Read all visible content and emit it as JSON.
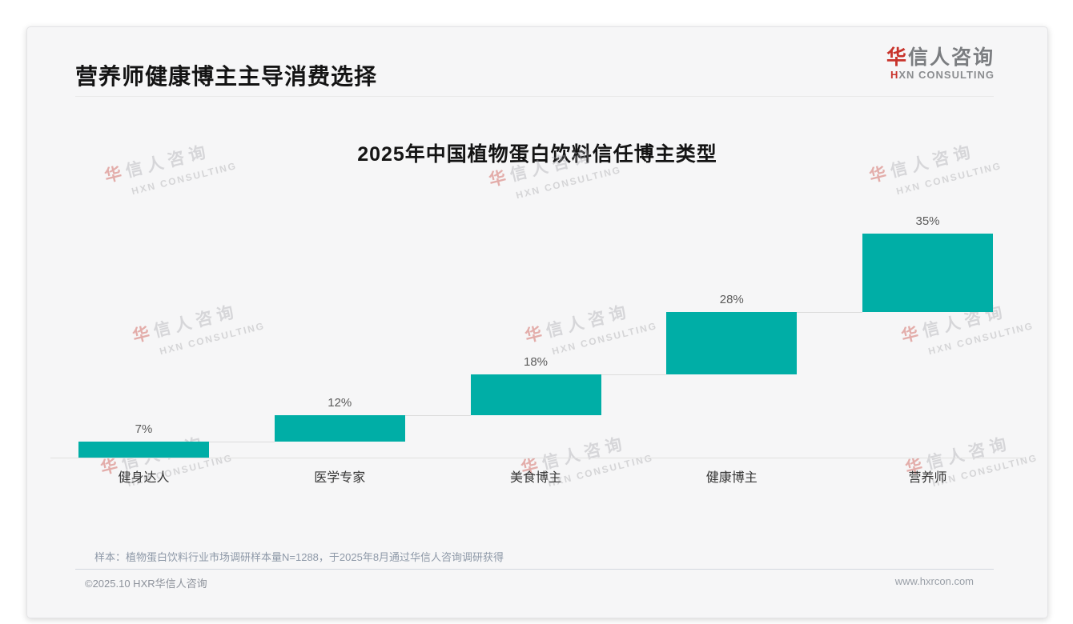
{
  "page": {
    "header_title": "营养师健康博主主导消费选择",
    "logo": {
      "cn_first": "华",
      "cn_rest": "信人咨询",
      "en_first": "H",
      "en_rest": "XN CONSULTING"
    },
    "watermark": {
      "cn_first": "华",
      "cn_rest": "信人咨询",
      "en": "HXN CONSULTING"
    },
    "sample_note": "样本：植物蛋白饮料行业市场调研样本量N=1288，于2025年8月通过华信人咨询调研获得",
    "footer_left": "©2025.10 HXR华信人咨询",
    "footer_right": "www.hxrcon.com"
  },
  "colors": {
    "teal": "#00AEA6",
    "accent_red": "#c8332b",
    "title_black": "#141414"
  },
  "chart_data": {
    "type": "bar",
    "variant": "waterfall-steps",
    "title": "2025年中国植物蛋白饮料信任博主类型",
    "categories": [
      "健身达人",
      "医学专家",
      "美食博主",
      "健康博主",
      "营养师"
    ],
    "values": [
      7,
      12,
      18,
      28,
      35
    ],
    "value_labels": [
      "7%",
      "12%",
      "18%",
      "28%",
      "35%"
    ],
    "cumulative": [
      7,
      19,
      37,
      65,
      100
    ],
    "unit": "%",
    "ylim": [
      0,
      100
    ],
    "grid": false,
    "legend": "none",
    "bar_color": "#00AEA6",
    "value_label_color": "#5a5a5a",
    "category_label_color": "#363636",
    "connector_color": "#dcdcdc",
    "baseline_color": "#e0e0e0"
  }
}
